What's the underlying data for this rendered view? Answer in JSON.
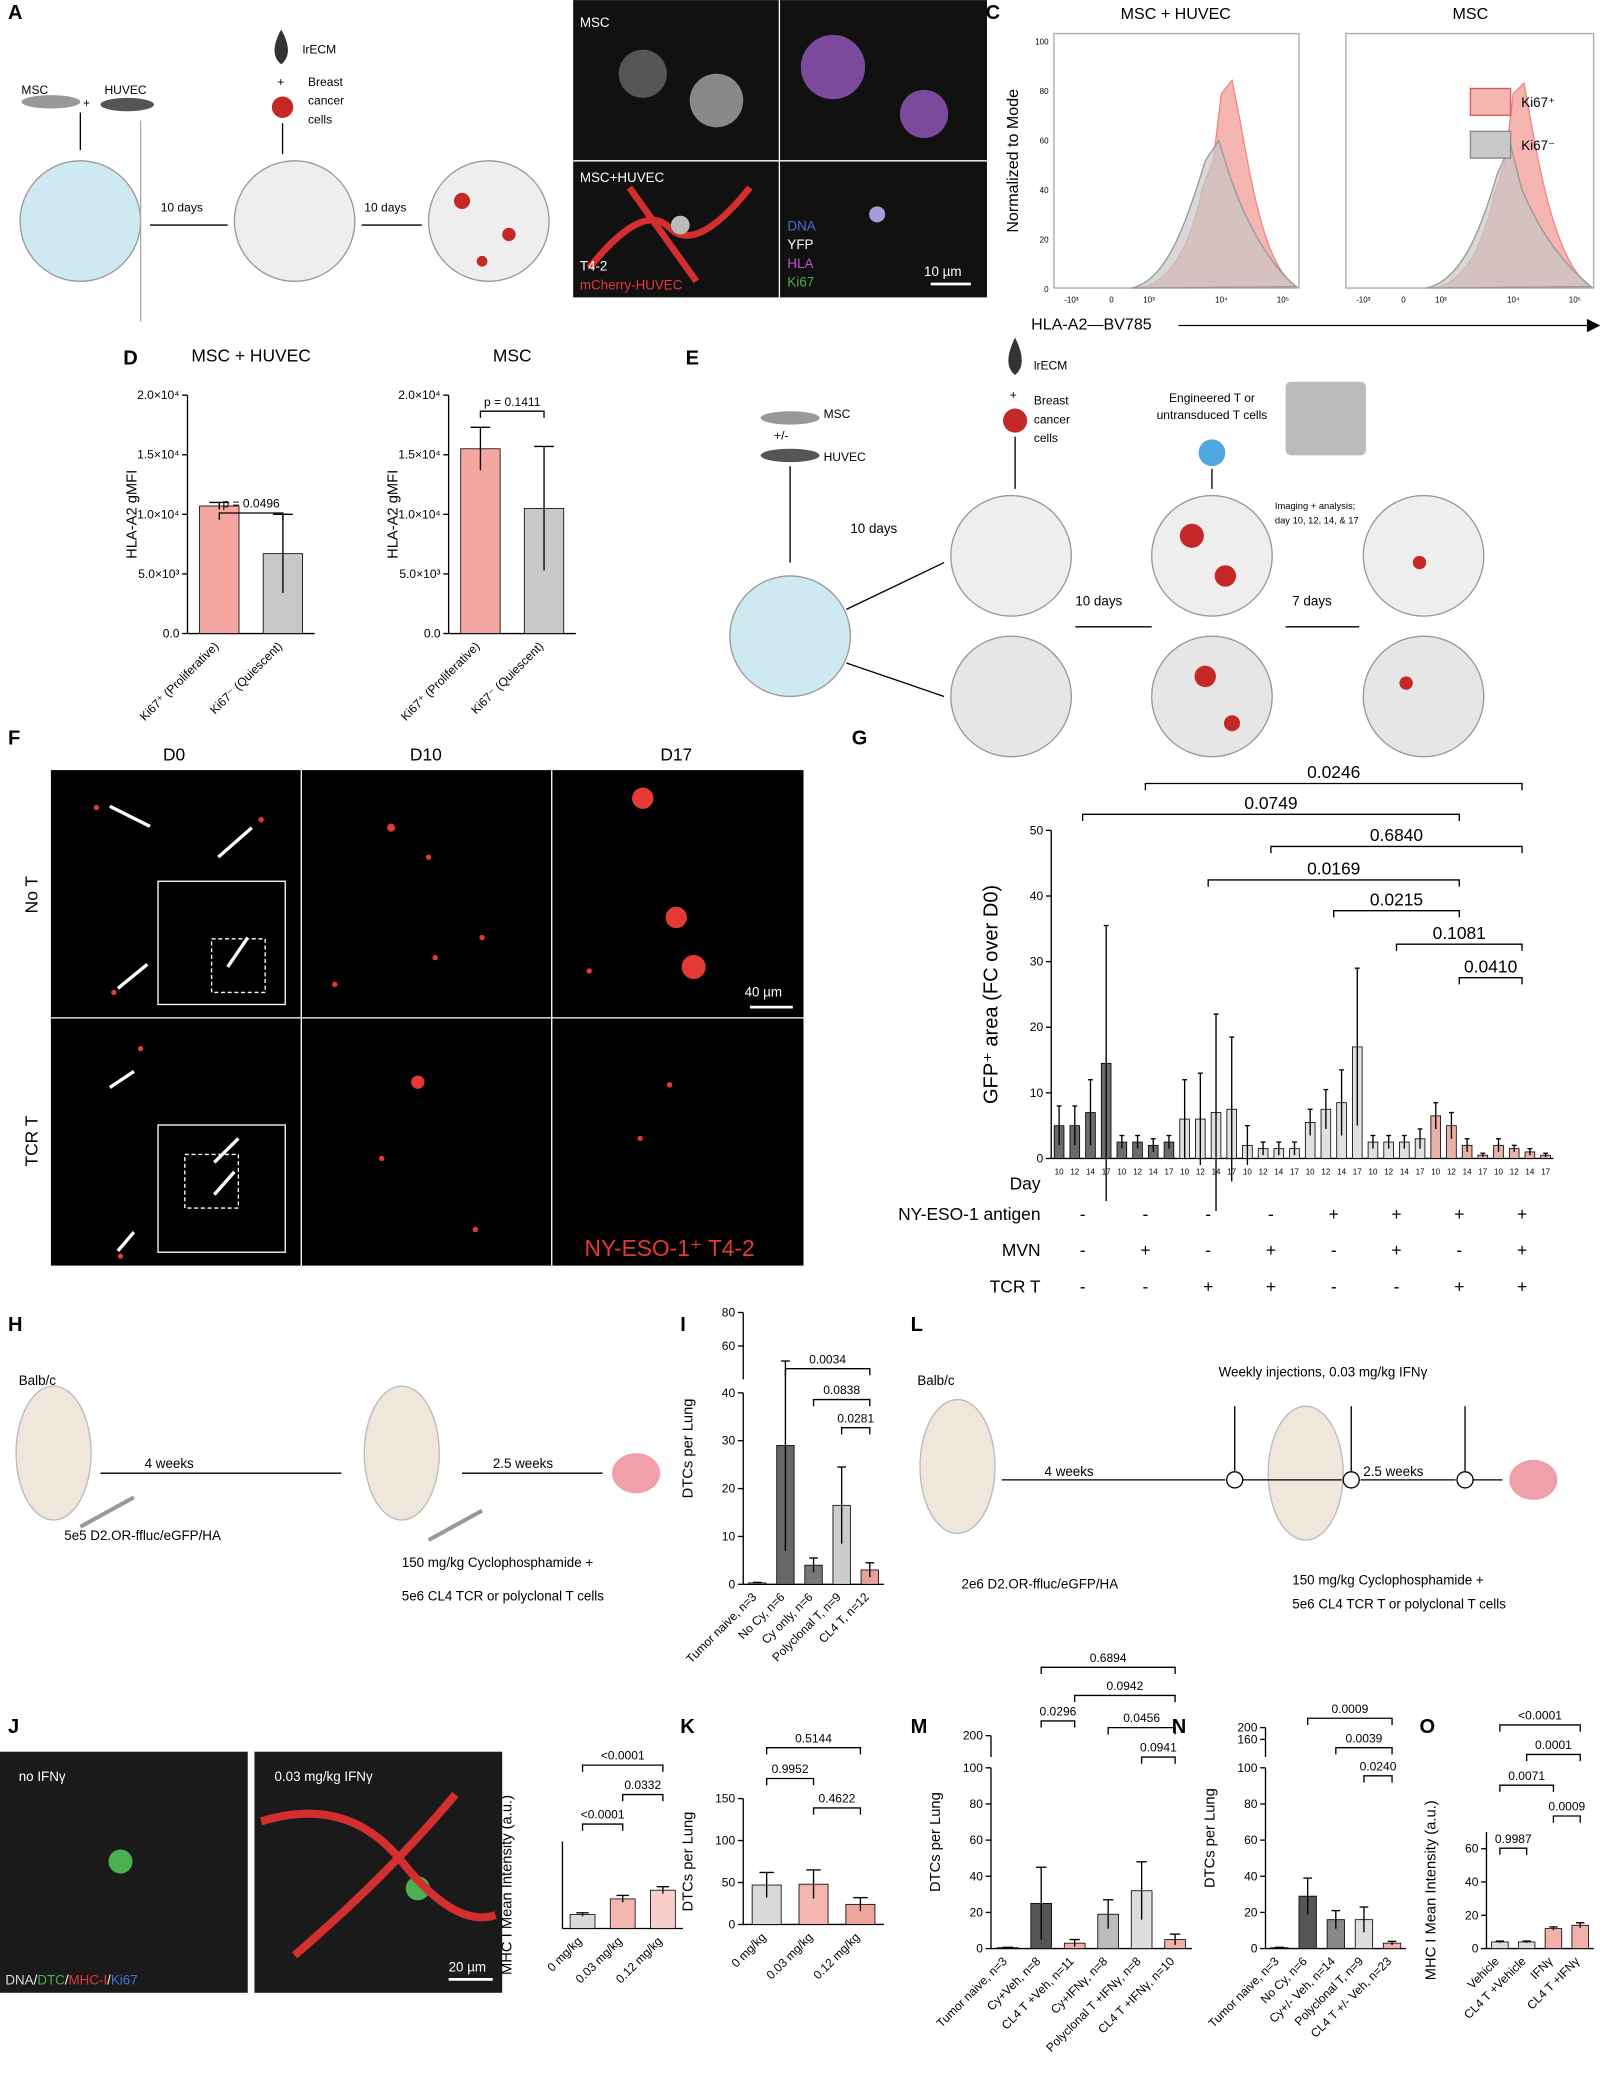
{
  "panels": {
    "A": {
      "letter": "A",
      "texts": [
        "MSC",
        "+",
        "HUVEC",
        "lrECM",
        "+",
        "Breast",
        "cancer",
        "cells",
        "10 days",
        "10 days"
      ]
    },
    "B": {
      "letter": "B",
      "texts": [
        "MSC",
        "MSC+HUVEC",
        "T4-2",
        "mCherry-HUVEC",
        "DNA",
        "YFP",
        "HLA",
        "Ki67",
        "10 µm"
      ]
    },
    "C": {
      "letter": "C",
      "texts": [
        "MSC + HUVEC",
        "MSC",
        "Normalized to Mode",
        "HLA-A2—BV785",
        "Ki67⁺",
        "Ki67⁻"
      ],
      "yticks": [
        "0",
        "20",
        "40",
        "60",
        "80",
        "100"
      ],
      "xticks": [
        "-10³",
        "0",
        "10³",
        "10⁴",
        "10⁵"
      ]
    },
    "D": {
      "letter": "D"
    },
    "E": {
      "letter": "E",
      "texts": [
        "MSC",
        "+/-",
        "HUVEC",
        "lrECM",
        "+",
        "Breast",
        "cancer",
        "cells",
        "Engineered T or",
        "untransduced T cells",
        "Imaging + analysis;",
        "day 10, 12, 14, & 17",
        "10 days",
        "10 days",
        "7 days"
      ]
    },
    "F": {
      "letter": "F",
      "texts": [
        "D0",
        "D10",
        "D17",
        "No T",
        "TCR T",
        "40 µm",
        "NY-ESO-1⁺ T4-2"
      ]
    },
    "G": {
      "letter": "G"
    },
    "H": {
      "letter": "H",
      "texts": [
        "Balb/c",
        "4 weeks",
        "2.5 weeks",
        "5e5 D2.OR-ffluc/eGFP/HA",
        "150 mg/kg Cyclophosphamide +",
        "5e6 CL4 TCR or polyclonal T cells"
      ]
    },
    "I": {
      "letter": "I"
    },
    "L": {
      "letter": "L",
      "texts": [
        "Balb/c",
        "Weekly injections, 0.03 mg/kg IFNγ",
        "4 weeks",
        "2.5 weeks",
        "2e6 D2.OR-ffluc/eGFP/HA",
        "150 mg/kg Cyclophosphamide +",
        "5e6 CL4 TCR T or polyclonal T cells"
      ]
    },
    "J": {
      "letter": "J",
      "texts": [
        "no IFNγ",
        "0.03 mg/kg IFNγ",
        "DNA",
        "/",
        "DTC",
        "/",
        "MHC-I",
        "/",
        "Ki67",
        "20 µm"
      ]
    },
    "K": {
      "letter": "K"
    },
    "M": {
      "letter": "M"
    },
    "N": {
      "letter": "N"
    },
    "O": {
      "letter": "O"
    }
  },
  "chart_data": [
    {
      "type": "bar",
      "title": "MSC + HUVEC",
      "y_label": "HLA-A2 gMFI",
      "categories": [
        "Ki67⁺ (Proliferative)",
        "Ki67⁻ (Quiescent)"
      ],
      "values": [
        10700,
        6700
      ],
      "errors": [
        300,
        3300
      ],
      "colors": [
        "#f4a6a0",
        "#c8c8c8"
      ],
      "ylim": [
        0,
        20000
      ],
      "yticks": [
        {
          "value": 0,
          "label": "0.0"
        },
        {
          "value": 5000,
          "label": "5.0×10³"
        },
        {
          "value": 10000,
          "label": "1.0×10⁴"
        },
        {
          "value": 15000,
          "label": "1.5×10⁴"
        },
        {
          "value": 20000,
          "label": "2.0×10⁴"
        }
      ],
      "brackets": [
        "p = 0.0496"
      ]
    },
    {
      "type": "bar",
      "title": "MSC",
      "y_label": "HLA-A2 gMFI",
      "categories": [
        "Ki67⁺ (Proliferative)",
        "Ki67⁻ (Quiescent)"
      ],
      "values": [
        15500,
        10500
      ],
      "errors": [
        1800,
        5200
      ],
      "colors": [
        "#f4a6a0",
        "#c8c8c8"
      ],
      "ylim": [
        0,
        20000
      ],
      "yticks": [
        {
          "value": 0,
          "label": "0.0"
        },
        {
          "value": 5000,
          "label": "5.0×10³"
        },
        {
          "value": 10000,
          "label": "1.0×10⁴"
        },
        {
          "value": 15000,
          "label": "1.5×10⁴"
        },
        {
          "value": 20000,
          "label": "2.0×10⁴"
        }
      ],
      "brackets": [
        "p = 0.1411"
      ]
    },
    {
      "type": "bar",
      "y_label": "GFP⁺ area (FC over D0)",
      "categories": [
        "10",
        "12",
        "14",
        "17",
        "10",
        "12",
        "14",
        "17",
        "10",
        "12",
        "14",
        "17",
        "10",
        "12",
        "14",
        "17",
        "10",
        "12",
        "14",
        "17",
        "10",
        "12",
        "14",
        "17",
        "10",
        "12",
        "14",
        "17",
        "10",
        "12",
        "14",
        "17"
      ],
      "values": [
        5,
        5,
        7,
        14.5,
        2.5,
        2.5,
        2,
        2.5,
        6,
        6,
        7,
        7.5,
        2,
        1.5,
        1.5,
        1.5,
        5.5,
        7.5,
        8.5,
        17,
        2.5,
        2.5,
        2.5,
        3,
        6.5,
        5,
        2,
        0.5,
        2,
        1.5,
        1,
        0.5
      ],
      "errors": [
        3,
        3,
        5,
        21,
        1,
        1,
        1,
        1,
        6,
        7,
        15,
        11,
        3,
        1,
        1,
        1,
        2,
        3,
        5,
        12,
        1,
        1,
        1,
        1.5,
        2,
        2,
        1,
        0.3,
        1,
        0.5,
        0.5,
        0.3
      ],
      "colors": [
        "#6b6b6b",
        "#6b6b6b",
        "#6b6b6b",
        "#6b6b6b",
        "#6b6b6b",
        "#6b6b6b",
        "#6b6b6b",
        "#6b6b6b",
        "#e0e0e0",
        "#e0e0e0",
        "#e0e0e0",
        "#e0e0e0",
        "#e0e0e0",
        "#e0e0e0",
        "#e0e0e0",
        "#e0e0e0",
        "#e0e0e0",
        "#e0e0e0",
        "#e0e0e0",
        "#e0e0e0",
        "#e0e0e0",
        "#e0e0e0",
        "#e0e0e0",
        "#e0e0e0",
        "#eab0aa",
        "#eab0aa",
        "#eab0aa",
        "#eab0aa",
        "#eab0aa",
        "#eab0aa",
        "#eab0aa",
        "#eab0aa"
      ],
      "ylim": [
        0,
        50
      ],
      "yticks": [
        0,
        10,
        20,
        30,
        40,
        50
      ],
      "brackets": [
        "0.0246",
        "0.0749",
        "0.6840",
        "0.0169",
        "0.0215",
        "0.1081",
        "0.0410"
      ],
      "row_labels": [
        "Day",
        "NY-ESO-1 antigen",
        "MVN",
        "TCR T"
      ],
      "antigen": [
        "-",
        "-",
        "-",
        "-",
        "+",
        "+",
        "+",
        "+"
      ],
      "mvn": [
        "-",
        "+",
        "-",
        "+",
        "-",
        "+",
        "-",
        "+"
      ],
      "tcr": [
        "-",
        "-",
        "+",
        "+",
        "-",
        "-",
        "+",
        "+"
      ]
    },
    {
      "type": "bar",
      "y_label": "DTCs per Lung",
      "categories": [
        "Tumor naive, n=3",
        "No Cy, n=6",
        "Cy only, n=6",
        "Polyclonal T, n=9",
        "CL4 T, n=12"
      ],
      "values": [
        0.3,
        29,
        4,
        16.5,
        3
      ],
      "errors": [
        0.1,
        22,
        1.5,
        8,
        1.5
      ],
      "colors": [
        "#888888",
        "#666666",
        "#777777",
        "#cccccc",
        "#e8a09a"
      ],
      "ylim": [
        0,
        40
      ],
      "yticks": [
        0,
        10,
        20,
        30,
        40
      ],
      "ylim_top": [
        40,
        80
      ],
      "yticks_top": [
        60,
        80
      ],
      "brackets": [
        "0.0034",
        "0.0838",
        "0.0281"
      ]
    },
    {
      "type": "bar",
      "y_label": "MHC I Mean Intensity (a.u.)",
      "categories": [
        "0 mg/kg",
        "0.03 mg/kg",
        "0.12 mg/kg"
      ],
      "values": [
        4,
        8.5,
        11
      ],
      "errors": [
        0.5,
        1,
        1
      ],
      "colors": [
        "#d9d9d9",
        "#f4b6b0",
        "#f8cfcb"
      ],
      "ylim": [
        0,
        25
      ],
      "brackets": [
        "<0.0001",
        "0.0332",
        "<0.0001"
      ]
    },
    {
      "type": "bar",
      "y_label": "DTCs per Lung",
      "categories": [
        "0 mg/kg",
        "0.03 mg/kg",
        "0.12 mg/kg"
      ],
      "values": [
        47,
        48,
        24
      ],
      "errors": [
        15,
        17,
        8
      ],
      "colors": [
        "#d9d9d9",
        "#f4b6b0",
        "#eea39c"
      ],
      "ylim": [
        0,
        150
      ],
      "yticks": [
        0,
        50,
        100,
        150
      ],
      "brackets": [
        "0.5144",
        "0.9952",
        "0.4622"
      ]
    },
    {
      "type": "bar",
      "y_label": "DTCs per Lung",
      "categories": [
        "Tumor naive, n=3",
        "Cy+Veh, n=8",
        "CL4 T +Veh, n=11",
        "Cy+IFNγ, n=8",
        "Polyclonal T +IFNγ, n=8",
        "CL4 T +IFNγ, n=10"
      ],
      "values": [
        0.5,
        25,
        3,
        19,
        32,
        5
      ],
      "errors": [
        0.2,
        20,
        2,
        8,
        16,
        3
      ],
      "colors": [
        "#666666",
        "#555555",
        "#f2b0aa",
        "#bbbbbb",
        "#dddddd",
        "#f2b0aa"
      ],
      "ylim": [
        0,
        100
      ],
      "yticks": [
        0,
        20,
        40,
        60,
        80,
        100
      ],
      "ylim_top": [
        100,
        200
      ],
      "yticks_top": [
        200
      ],
      "brackets": [
        "0.6894",
        "0.0942",
        "0.0456",
        "0.0941",
        "0.0296"
      ]
    },
    {
      "type": "bar",
      "y_label": "DTCs per Lung",
      "categories": [
        "Tumor naive, n=3",
        "No Cy, n=6",
        "Cy+/- Veh, n=14",
        "Polyclonal T, n=9",
        "CL4 T +/- Veh, n=23"
      ],
      "values": [
        0.5,
        29,
        16,
        16,
        3
      ],
      "errors": [
        0.2,
        10,
        5,
        7,
        1
      ],
      "colors": [
        "#666666",
        "#555555",
        "#888888",
        "#dddddd",
        "#f2b0aa"
      ],
      "ylim": [
        0,
        100
      ],
      "yticks": [
        0,
        20,
        40,
        60,
        80,
        100
      ],
      "ylim_top": [
        100,
        200
      ],
      "yticks_top": [
        160,
        200
      ],
      "brackets": [
        "0.0009",
        "0.0039",
        "0.0240"
      ]
    },
    {
      "type": "bar",
      "y_label": "MHC I  Mean Intensity (a.u.)",
      "categories": [
        "Vehicle",
        "CL4 T +Vehicle",
        "IFNγ",
        "CL4 T +IFNγ"
      ],
      "values": [
        4,
        4,
        12,
        14
      ],
      "errors": [
        0.5,
        0.5,
        1,
        1.5
      ],
      "colors": [
        "#dddddd",
        "#dddddd",
        "#f2b0aa",
        "#f2b0aa"
      ],
      "ylim": [
        0,
        70
      ],
      "yticks": [
        0,
        20,
        40,
        60
      ],
      "brackets": [
        "<0.0001",
        "0.0001",
        "0.0071",
        "0.0009",
        "0.9987"
      ]
    }
  ]
}
